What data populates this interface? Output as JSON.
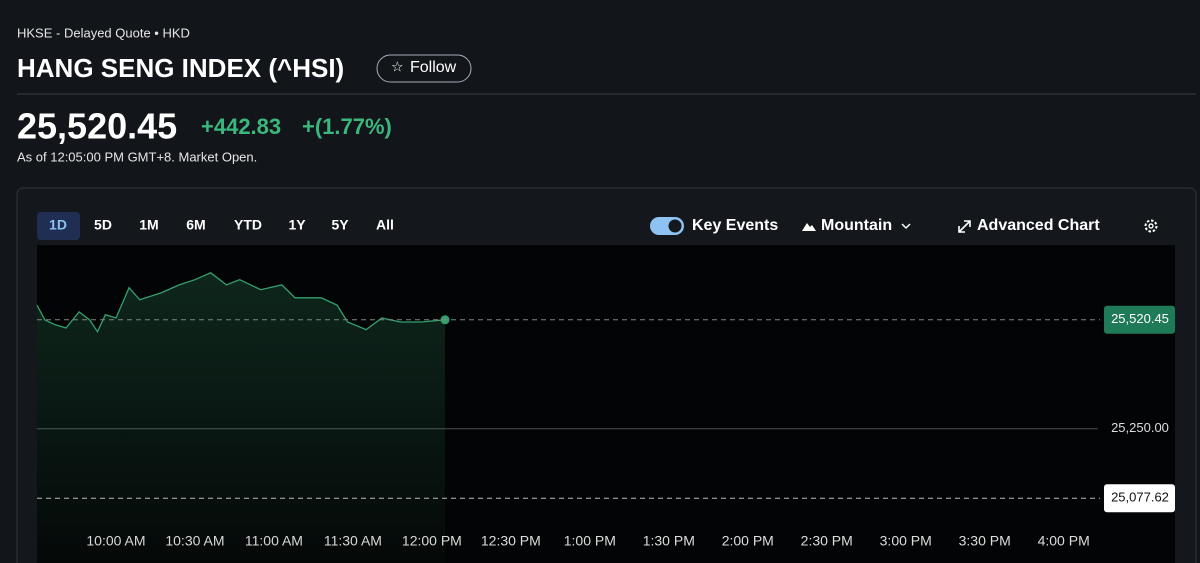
{
  "header": {
    "exchange": "HKSE - Delayed Quote • HKD",
    "title": "HANG SENG INDEX (^HSI)",
    "follow": "Follow"
  },
  "quote": {
    "price": "25,520.45",
    "change": "+442.83",
    "change_pct": "+(1.77%)",
    "as_of": "As of 12:05:00 PM GMT+8. Market Open."
  },
  "toolbar": {
    "ranges": [
      "1D",
      "5D",
      "1M",
      "6M",
      "YTD",
      "1Y",
      "5Y",
      "All"
    ],
    "key_events": "Key Events",
    "chart_style": "Mountain",
    "advanced": "Advanced Chart"
  },
  "chart_data": {
    "type": "line",
    "x": [
      "9:30 AM",
      "9:33 AM",
      "9:37 AM",
      "9:41 AM",
      "9:46 AM",
      "9:50 AM",
      "9:53 AM",
      "9:56 AM",
      "10:00 AM",
      "10:05 AM",
      "10:09 AM",
      "10:17 AM",
      "10:24 AM",
      "10:30 AM",
      "10:36 AM",
      "10:42 AM",
      "10:47 AM",
      "10:55 AM",
      "11:03 AM",
      "11:08 AM",
      "11:18 AM",
      "11:24 AM",
      "11:28 AM",
      "11:35 AM",
      "11:41 AM",
      "11:48 AM",
      "11:56 AM",
      "12:05 PM"
    ],
    "values": [
      25557,
      25520,
      25508,
      25500,
      25540,
      25520,
      25491,
      25533,
      25525,
      25600,
      25570,
      25587,
      25607,
      25620,
      25637,
      25607,
      25620,
      25595,
      25607,
      25575,
      25575,
      25557,
      25515,
      25496,
      25525,
      25515,
      25515,
      25520.45
    ],
    "color": "#35a06e",
    "xlim": [
      "9:30 AM",
      "4:10 PM"
    ],
    "xticks": [
      "10:00 AM",
      "10:30 AM",
      "11:00 AM",
      "11:30 AM",
      "12:00 PM",
      "12:30 PM",
      "1:00 PM",
      "1:30 PM",
      "2:00 PM",
      "2:30 PM",
      "3:00 PM",
      "3:30 PM",
      "4:00 PM"
    ],
    "ylim": [
      24917,
      25706
    ],
    "yticks": [
      {
        "value": 25250,
        "label": "25,250.00"
      }
    ],
    "reference_lines": [
      {
        "value": 25520.45,
        "label": "25,520.45"
      },
      {
        "value": 25077.62,
        "label": "25,077.62"
      }
    ]
  }
}
